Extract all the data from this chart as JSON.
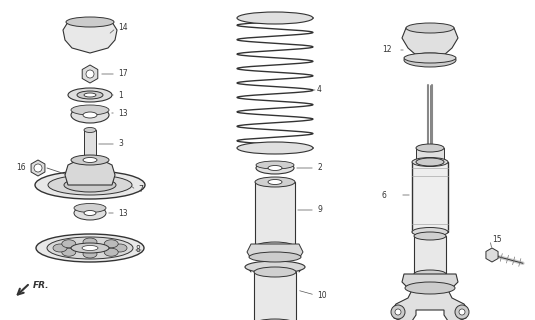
{
  "bg_color": "#ffffff",
  "line_color": "#333333",
  "fig_width": 5.35,
  "fig_height": 3.2,
  "dpi": 100,
  "label_fs": 5.5
}
